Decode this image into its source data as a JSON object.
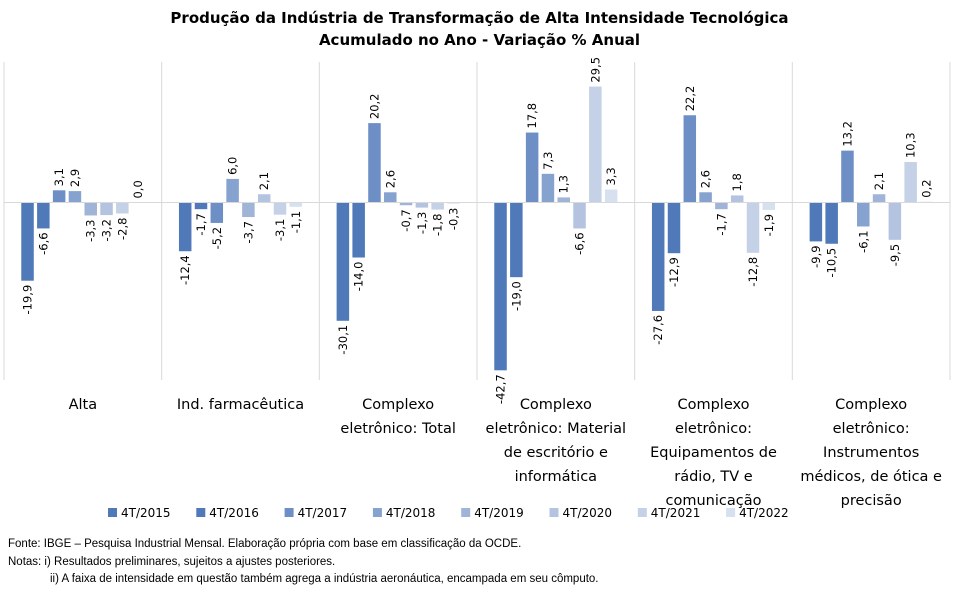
{
  "chart_data": {
    "type": "bar",
    "title": [
      "Produção da Indústria de Transformação de Alta Intensidade Tecnológica",
      "Acumulado no Ano - Variação % Anual"
    ],
    "xlabel": "",
    "ylabel": "",
    "categories": [
      [
        "Alta"
      ],
      [
        "Ind. farmacêutica"
      ],
      [
        "Complexo",
        "eletrônico: Total"
      ],
      [
        "Complexo",
        "eletrônico: Material",
        "de escritório e",
        "informática"
      ],
      [
        "Complexo",
        "eletrônico:",
        "Equipamentos de",
        "rádio, TV e",
        "comunicação"
      ],
      [
        "Complexo",
        "eletrônico:",
        "Instrumentos",
        "médicos, de ótica e",
        "precisão"
      ]
    ],
    "series": [
      {
        "name": "4T/2015",
        "color": "#4f79b9",
        "values": [
          -19.9,
          -12.4,
          -30.1,
          -42.7,
          -27.6,
          -9.9
        ]
      },
      {
        "name": "4T/2016",
        "color": "#4f79b9",
        "values": [
          -6.6,
          -1.7,
          -14.0,
          -19.0,
          -12.9,
          -10.5
        ]
      },
      {
        "name": "4T/2017",
        "color": "#6d8fc6",
        "values": [
          3.1,
          -5.2,
          20.2,
          17.8,
          22.2,
          13.2
        ]
      },
      {
        "name": "4T/2018",
        "color": "#86a2cf",
        "values": [
          2.9,
          6.0,
          2.6,
          7.3,
          2.6,
          -6.1
        ]
      },
      {
        "name": "4T/2019",
        "color": "#a0b4d8",
        "values": [
          -3.3,
          -3.7,
          -0.7,
          1.3,
          -1.7,
          2.1
        ]
      },
      {
        "name": "4T/2020",
        "color": "#b4c4e0",
        "values": [
          -3.2,
          2.1,
          -1.3,
          -6.6,
          1.8,
          -9.5
        ]
      },
      {
        "name": "4T/2021",
        "color": "#c4d1e7",
        "values": [
          -2.8,
          -3.1,
          -1.8,
          29.5,
          -12.8,
          10.3
        ]
      },
      {
        "name": "4T/2022",
        "color": "#d6e0ef",
        "values": [
          0.0,
          -1.1,
          -0.3,
          3.3,
          -1.9,
          0.2
        ]
      }
    ],
    "value_labels": [
      [
        "-19,9",
        "-6,6",
        "3,1",
        "2,9",
        "-3,3",
        "-3,2",
        "-2,8",
        "0,0"
      ],
      [
        "-12,4",
        "-1,7",
        "-5,2",
        "6,0",
        "-3,7",
        "2,1",
        "-3,1",
        "-1,1"
      ],
      [
        "-30,1",
        "-14,0",
        "20,2",
        "2,6",
        "-0,7",
        "-1,3",
        "-1,8",
        "-0,3"
      ],
      [
        "-42,7",
        "-19,0",
        "17,8",
        "7,3",
        "1,3",
        "-6,6",
        "29,5",
        "3,3"
      ],
      [
        "-27,6",
        "-12,9",
        "22,2",
        "2,6",
        "-1,7",
        "1,8",
        "-12,8",
        "-1,9"
      ],
      [
        "-9,9",
        "-10,5",
        "13,2",
        "-6,1",
        "2,1",
        "-9,5",
        "10,3",
        "0,2"
      ]
    ],
    "ylim": [
      -45,
      35
    ],
    "grid": false,
    "legend": "bottom"
  },
  "notes": {
    "source": "Fonte: IBGE – Pesquisa Industrial Mensal. Elaboração própria com base em classificação da OCDE.",
    "note1": "Notas: i) Resultados preliminares, sujeitos a ajustes posteriores.",
    "note2": "ii) A faixa de intensidade em questão também agrega a indústria aeronáutica, encampada em seu cômputo."
  }
}
